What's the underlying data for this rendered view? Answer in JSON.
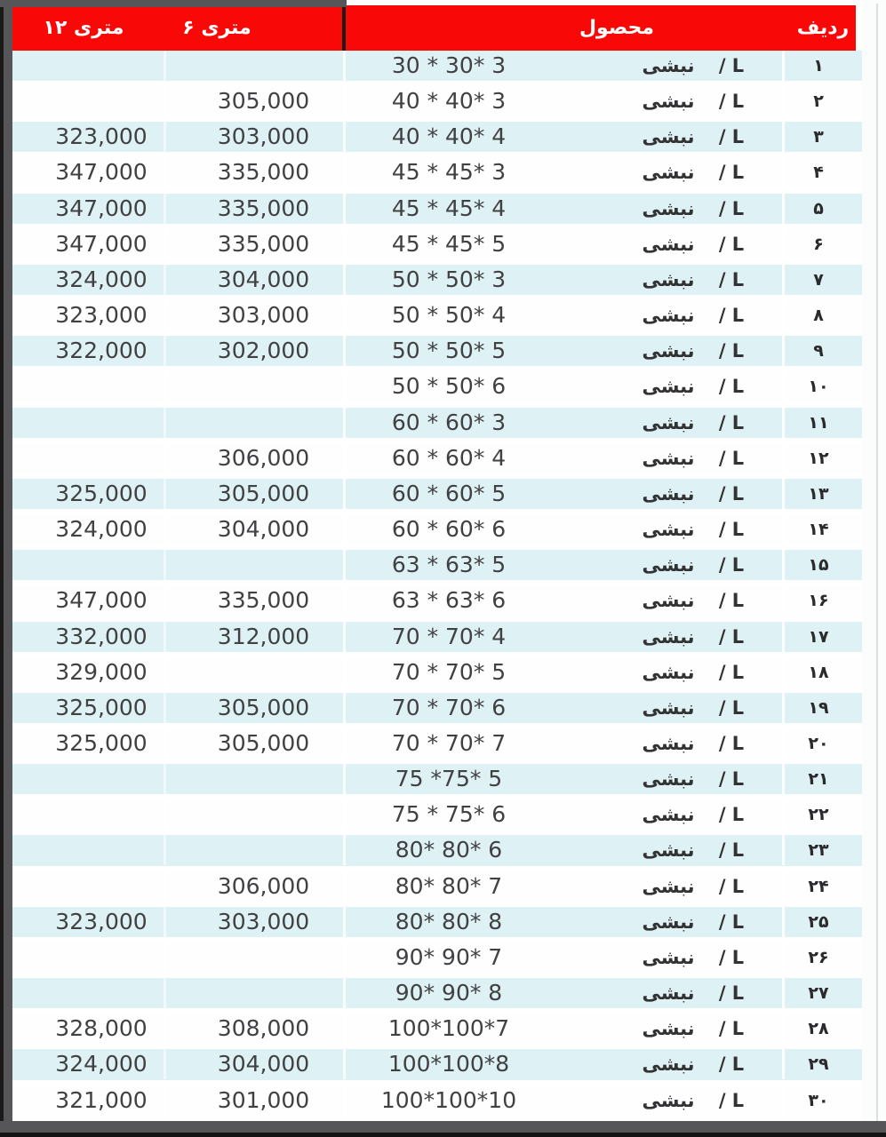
{
  "colors": {
    "header_bg": "#f90808",
    "header_text": "#ffffff",
    "row_alt_bg": "#def1f4",
    "row_bg": "#fefefe",
    "frame": "#565658",
    "frame_dark": "#1a1a1a",
    "text": "#414144"
  },
  "header": {
    "row_number": "ردیف",
    "product": "محصول",
    "six_meter": "۶ متری",
    "twelve_meter": "۱۲ متری"
  },
  "product": {
    "type_label": "نبشی",
    "shape_label": "/ L"
  },
  "rows": [
    {
      "no": "۱",
      "size": "30 * 30* 3",
      "p6": "",
      "p12": ""
    },
    {
      "no": "۲",
      "size": "40 * 40* 3",
      "p6": "305,000",
      "p12": ""
    },
    {
      "no": "۳",
      "size": "40 * 40* 4",
      "p6": "303,000",
      "p12": "323,000"
    },
    {
      "no": "۴",
      "size": "45 * 45* 3",
      "p6": "335,000",
      "p12": "347,000"
    },
    {
      "no": "۵",
      "size": "45 * 45* 4",
      "p6": "335,000",
      "p12": "347,000"
    },
    {
      "no": "۶",
      "size": "45 * 45* 5",
      "p6": "335,000",
      "p12": "347,000"
    },
    {
      "no": "۷",
      "size": "50 * 50* 3",
      "p6": "304,000",
      "p12": "324,000"
    },
    {
      "no": "۸",
      "size": "50 * 50* 4",
      "p6": "303,000",
      "p12": "323,000"
    },
    {
      "no": "۹",
      "size": "50 * 50* 5",
      "p6": "302,000",
      "p12": "322,000"
    },
    {
      "no": "۱۰",
      "size": "50 * 50* 6",
      "p6": "",
      "p12": ""
    },
    {
      "no": "۱۱",
      "size": "60 * 60* 3",
      "p6": "",
      "p12": ""
    },
    {
      "no": "۱۲",
      "size": "60 * 60* 4",
      "p6": "306,000",
      "p12": ""
    },
    {
      "no": "۱۳",
      "size": "60 * 60* 5",
      "p6": "305,000",
      "p12": "325,000"
    },
    {
      "no": "۱۴",
      "size": "60 * 60* 6",
      "p6": "304,000",
      "p12": "324,000"
    },
    {
      "no": "۱۵",
      "size": "63 * 63* 5",
      "p6": "",
      "p12": ""
    },
    {
      "no": "۱۶",
      "size": "63 * 63* 6",
      "p6": "335,000",
      "p12": "347,000"
    },
    {
      "no": "۱۷",
      "size": "70 * 70* 4",
      "p6": "312,000",
      "p12": "332,000"
    },
    {
      "no": "۱۸",
      "size": "70 * 70* 5",
      "p6": "",
      "p12": "329,000"
    },
    {
      "no": "۱۹",
      "size": "70 * 70* 6",
      "p6": "305,000",
      "p12": "325,000"
    },
    {
      "no": "۲۰",
      "size": "70 * 70* 7",
      "p6": "305,000",
      "p12": "325,000"
    },
    {
      "no": "۲۱",
      "size": "75 *75* 5",
      "p6": "",
      "p12": ""
    },
    {
      "no": "۲۲",
      "size": "75 * 75* 6",
      "p6": "",
      "p12": ""
    },
    {
      "no": "۲۳",
      "size": "80* 80* 6",
      "p6": "",
      "p12": ""
    },
    {
      "no": "۲۴",
      "size": "80* 80* 7",
      "p6": "306,000",
      "p12": ""
    },
    {
      "no": "۲۵",
      "size": "80* 80* 8",
      "p6": "303,000",
      "p12": "323,000"
    },
    {
      "no": "۲۶",
      "size": "90* 90* 7",
      "p6": "",
      "p12": ""
    },
    {
      "no": "۲۷",
      "size": "90* 90* 8",
      "p6": "",
      "p12": ""
    },
    {
      "no": "۲۸",
      "size": "100*100*7",
      "p6": "308,000",
      "p12": "328,000"
    },
    {
      "no": "۲۹",
      "size": "100*100*8",
      "p6": "304,000",
      "p12": "324,000"
    },
    {
      "no": "۳۰",
      "size": "100*100*10",
      "p6": "301,000",
      "p12": "321,000"
    }
  ]
}
